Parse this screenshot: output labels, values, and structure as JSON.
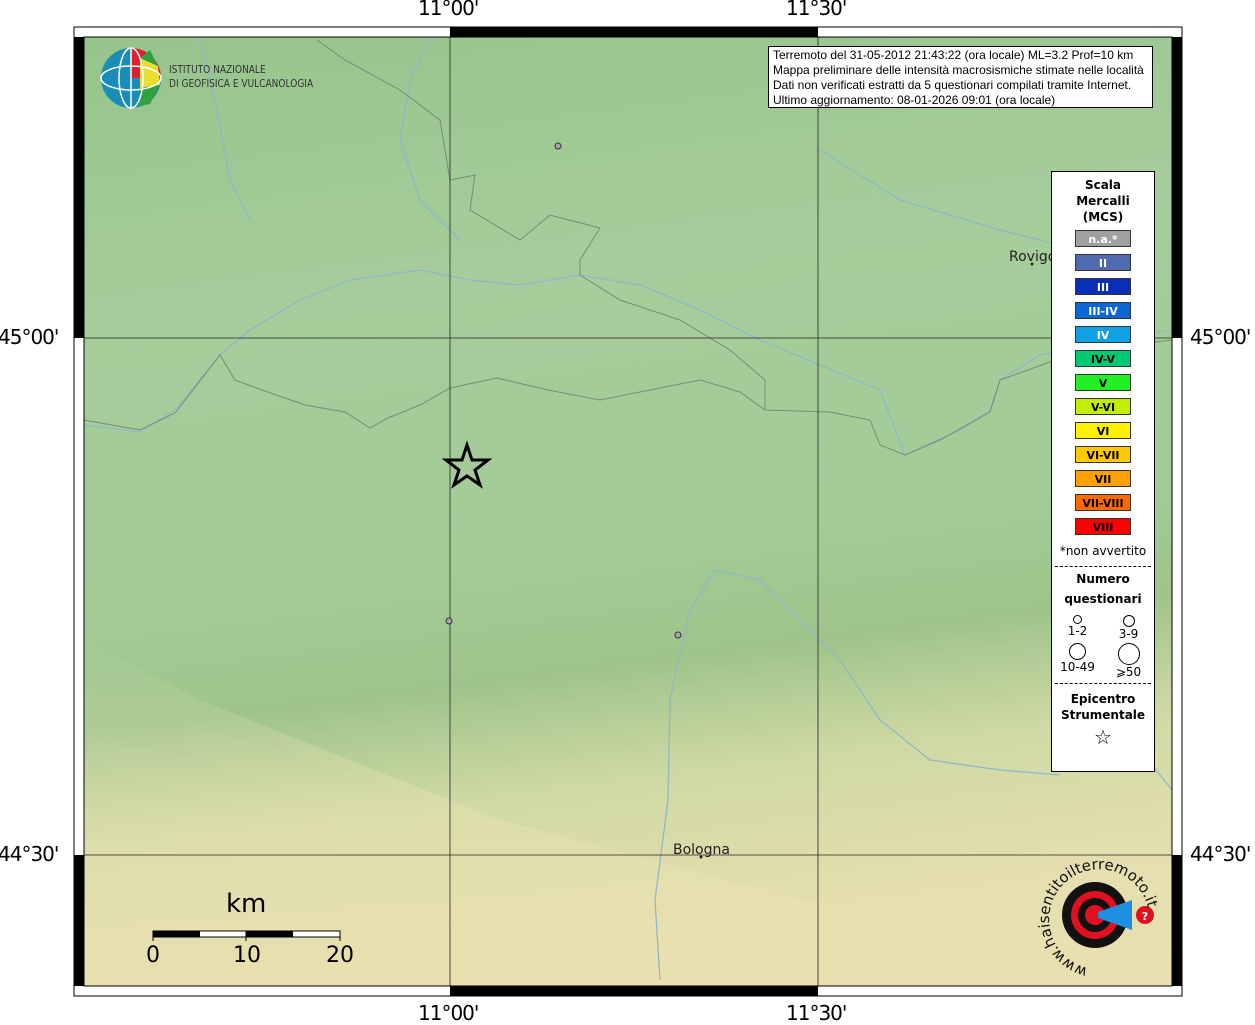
{
  "map": {
    "grid": {
      "lon_labels": [
        "11°00'",
        "11°30'"
      ],
      "lat_labels": [
        "45°00'",
        "44°30'"
      ]
    },
    "places": [
      {
        "name": "Rovigo",
        "label": "Rovigo"
      },
      {
        "name": "Bologna",
        "label": "Bologna"
      }
    ],
    "epicenter_icon": "star-icon",
    "observation_points": 3,
    "colors": {
      "terrain_low": "#a6cc9a",
      "terrain_high": "#e8e2b4",
      "rivers": "#8fb8c8",
      "borders": "#777777"
    }
  },
  "info_box": {
    "lines": [
      "Terremoto del 31-05-2012 21:43:22 (ora locale) ML=3.2 Prof=10 km",
      "Mappa preliminare delle intensità macrosismiche stimate nelle località",
      "Dati non verificati estratti da 5 questionari compilati tramite Internet.",
      "Ultimo aggiornamento: 08-01-2026 09:01 (ora locale)"
    ]
  },
  "logo_ingv": {
    "line1": "ISTITUTO NAZIONALE",
    "line2": "DI GEOFISICA E VULCANOLOGIA"
  },
  "logo_hsit": {
    "text": "www.haisentitoilterremoto.it"
  },
  "legend": {
    "title": [
      "Scala",
      "Mercalli",
      "(MCS)"
    ],
    "scale": [
      {
        "label": "n.a.*",
        "color": "#a0a0a0",
        "text_color": "#ffffff"
      },
      {
        "label": "II",
        "color": "#4f6aae",
        "text_color": "#ffffff"
      },
      {
        "label": "III",
        "color": "#0a2fb6",
        "text_color": "#ffffff"
      },
      {
        "label": "III-IV",
        "color": "#0c66d4",
        "text_color": "#ffffff"
      },
      {
        "label": "IV",
        "color": "#10a0e6",
        "text_color": "#ffffff"
      },
      {
        "label": "IV-V",
        "color": "#00c873",
        "text_color": "#000000"
      },
      {
        "label": "V",
        "color": "#22f022",
        "text_color": "#000000"
      },
      {
        "label": "V-VI",
        "color": "#c0f000",
        "text_color": "#000000"
      },
      {
        "label": "VI",
        "color": "#fff200",
        "text_color": "#000000"
      },
      {
        "label": "VI-VII",
        "color": "#ffc800",
        "text_color": "#000000"
      },
      {
        "label": "VII",
        "color": "#ffa000",
        "text_color": "#000000"
      },
      {
        "label": "VII-VIII",
        "color": "#ff6a00",
        "text_color": "#000000"
      },
      {
        "label": "VIII",
        "color": "#ff0000",
        "text_color": "#000000"
      }
    ],
    "note": "*non avvertito",
    "questionnaires_title": [
      "Numero",
      "questionari"
    ],
    "sizes": [
      "1-2",
      "3-9",
      "10-49",
      "⩾50"
    ],
    "epicenter_title": [
      "Epicentro",
      "Strumentale"
    ],
    "epicenter_icon": "star-icon"
  },
  "scale_bar": {
    "unit": "km",
    "ticks": [
      "0",
      "10",
      "20"
    ]
  }
}
